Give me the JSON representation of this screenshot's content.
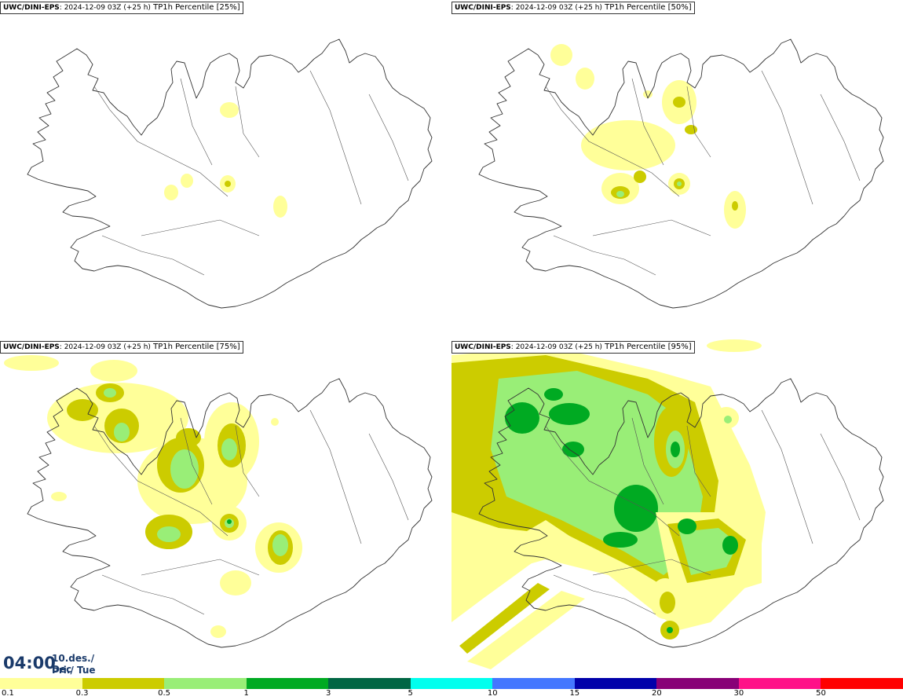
{
  "panels": [
    {
      "model": "UWC/DINI-EPS",
      "run": ": 2024-12-09 03Z (+25 h)",
      "param": " TP1h Percentile [25%]"
    },
    {
      "model": "UWC/DINI-EPS",
      "run": ": 2024-12-09 03Z (+25 h)",
      "param": " TP1h Percentile [50%]"
    },
    {
      "model": "UWC/DINI-EPS",
      "run": ": 2024-12-09 03Z (+25 h)",
      "param": " TP1h Percentile [75%]"
    },
    {
      "model": "UWC/DINI-EPS",
      "run": ": 2024-12-09 03Z (+25 h)",
      "param": " TP1h Percentile [95%]"
    }
  ],
  "valid": {
    "time": "04:00",
    "date_line1": "10.des./ Dec",
    "date_line2": "Þri./ Tue"
  },
  "legend": {
    "colors": [
      "#ffff99",
      "#cccc00",
      "#99ee77",
      "#00aa22",
      "#006644",
      "#00ffee",
      "#4477ff",
      "#0000aa",
      "#880077",
      "#ff1188",
      "#ff0000"
    ],
    "labels": [
      "0.1",
      "0.3",
      "0.5",
      "1",
      "3",
      "5",
      "10",
      "15",
      "20",
      "30",
      "50"
    ]
  }
}
